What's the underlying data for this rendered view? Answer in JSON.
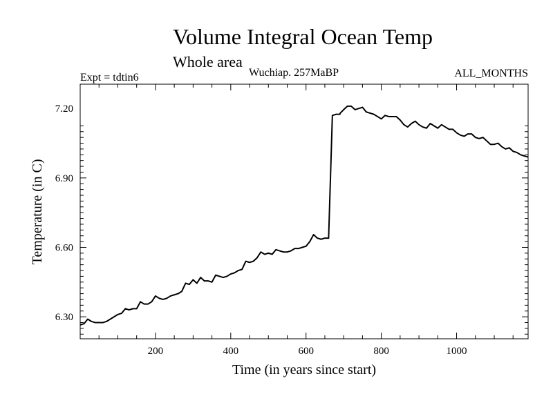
{
  "chart_data": {
    "type": "line",
    "title": "Volume Integral Ocean Temp",
    "subtitle": "Whole area",
    "experiment_label": "Expt = tdtin6",
    "period_label": "Wuchiap. 257MaBP",
    "months_label": "ALL_MONTHS",
    "xlabel": "Time (in years since start)",
    "ylabel": "Temperature (in C)",
    "xlim": [
      0,
      1190
    ],
    "ylim": [
      6.205,
      7.305
    ],
    "xticks": [
      200,
      400,
      600,
      800,
      1000
    ],
    "xtick_labels": [
      "200",
      "400",
      "600",
      "800",
      "1000"
    ],
    "yticks": [
      6.3,
      6.6,
      6.9,
      7.2
    ],
    "ytick_labels": [
      "6.30",
      "6.60",
      "6.90",
      "7.20"
    ],
    "grid": false,
    "series": [
      {
        "name": "Volume Integral Ocean Temp",
        "x": [
          0,
          10,
          20,
          30,
          40,
          50,
          60,
          70,
          80,
          90,
          100,
          110,
          120,
          130,
          140,
          150,
          160,
          170,
          180,
          190,
          200,
          210,
          220,
          230,
          240,
          250,
          260,
          270,
          280,
          290,
          300,
          310,
          320,
          330,
          340,
          350,
          360,
          370,
          380,
          390,
          400,
          410,
          420,
          430,
          440,
          450,
          460,
          470,
          480,
          490,
          500,
          510,
          520,
          530,
          540,
          550,
          560,
          570,
          580,
          590,
          600,
          610,
          620,
          630,
          640,
          650,
          660,
          670,
          680,
          690,
          691,
          700,
          710,
          720,
          730,
          740,
          750,
          760,
          770,
          780,
          790,
          800,
          810,
          820,
          830,
          840,
          850,
          860,
          870,
          880,
          890,
          900,
          910,
          920,
          930,
          940,
          950,
          960,
          970,
          980,
          990,
          1000,
          1010,
          1020,
          1030,
          1040,
          1050,
          1060,
          1070,
          1080,
          1090,
          1100,
          1110,
          1120,
          1130,
          1140,
          1150,
          1160,
          1170,
          1180,
          1190
        ],
        "values": [
          6.265,
          6.27,
          6.29,
          6.28,
          6.275,
          6.275,
          6.275,
          6.28,
          6.29,
          6.3,
          6.31,
          6.315,
          6.335,
          6.33,
          6.335,
          6.335,
          6.365,
          6.355,
          6.355,
          6.365,
          6.39,
          6.38,
          6.375,
          6.38,
          6.39,
          6.395,
          6.4,
          6.41,
          6.445,
          6.44,
          6.46,
          6.445,
          6.47,
          6.455,
          6.455,
          6.45,
          6.48,
          6.475,
          6.47,
          6.475,
          6.485,
          6.49,
          6.5,
          6.505,
          6.54,
          6.535,
          6.54,
          6.555,
          6.58,
          6.57,
          6.575,
          6.57,
          6.59,
          6.585,
          6.58,
          6.58,
          6.585,
          6.595,
          6.595,
          6.6,
          6.605,
          6.625,
          6.655,
          6.64,
          6.635,
          6.64,
          6.64,
          7.17,
          7.175,
          7.175,
          7.18,
          7.195,
          7.21,
          7.21,
          7.195,
          7.2,
          7.205,
          7.185,
          7.18,
          7.175,
          7.165,
          7.155,
          7.17,
          7.165,
          7.165,
          7.165,
          7.15,
          7.13,
          7.12,
          7.135,
          7.145,
          7.13,
          7.12,
          7.115,
          7.135,
          7.125,
          7.115,
          7.13,
          7.12,
          7.11,
          7.11,
          7.095,
          7.085,
          7.08,
          7.09,
          7.09,
          7.075,
          7.07,
          7.075,
          7.06,
          7.045,
          7.045,
          7.05,
          7.035,
          7.025,
          7.03,
          7.015,
          7.01,
          7.0,
          6.995,
          6.99
        ]
      }
    ]
  }
}
